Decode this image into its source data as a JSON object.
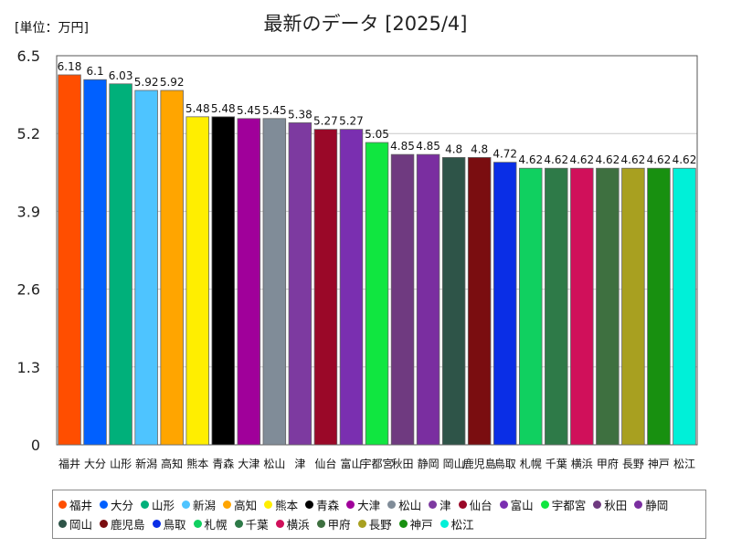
{
  "chart_data": {
    "type": "bar",
    "title": "最新のデータ [2025/4]",
    "unit_label": "[単位：万円]",
    "ylim": [
      0,
      6.5
    ],
    "yticks": [
      "0",
      "1.3",
      "2.6",
      "3.9",
      "5.2",
      "6.5"
    ],
    "grid": true,
    "legend_position": "bottom",
    "categories": [
      "福井",
      "大分",
      "山形",
      "新潟",
      "高知",
      "熊本",
      "青森",
      "大津",
      "松山",
      "津",
      "仙台",
      "富山",
      "宇都宮",
      "秋田",
      "静岡",
      "岡山",
      "鹿児島",
      "鳥取",
      "札幌",
      "千葉",
      "横浜",
      "甲府",
      "長野",
      "神戸",
      "松江"
    ],
    "values": [
      6.18,
      6.1,
      6.03,
      5.92,
      5.92,
      5.48,
      5.48,
      5.45,
      5.45,
      5.38,
      5.27,
      5.27,
      5.05,
      4.85,
      4.85,
      4.8,
      4.8,
      4.72,
      4.62,
      4.62,
      4.62,
      4.62,
      4.62,
      4.62,
      4.62
    ],
    "value_labels": [
      "6.18",
      "6.1",
      "6.03",
      "5.92",
      "5.92",
      "5.48",
      "5.48",
      "5.45",
      "5.45",
      "5.38",
      "5.27",
      "5.27",
      "5.05",
      "4.85",
      "4.85",
      "4.8",
      "4.8",
      "4.72",
      "4.62",
      "4.62",
      "4.62",
      "4.62",
      "4.62",
      "4.62",
      "4.62"
    ],
    "colors": [
      "#ff4e00",
      "#0060ff",
      "#00b07a",
      "#4ec4ff",
      "#ffa500",
      "#ffee00",
      "#000000",
      "#a0009a",
      "#808c98",
      "#7d3aa0",
      "#9a0828",
      "#7a2fb0",
      "#10e640",
      "#6f3a80",
      "#7a2ea0",
      "#2e5448",
      "#7a0d10",
      "#0a2ee6",
      "#10d060",
      "#2e7a48",
      "#d0105a",
      "#3e7040",
      "#a8a020",
      "#189010",
      "#00f0d8"
    ]
  }
}
